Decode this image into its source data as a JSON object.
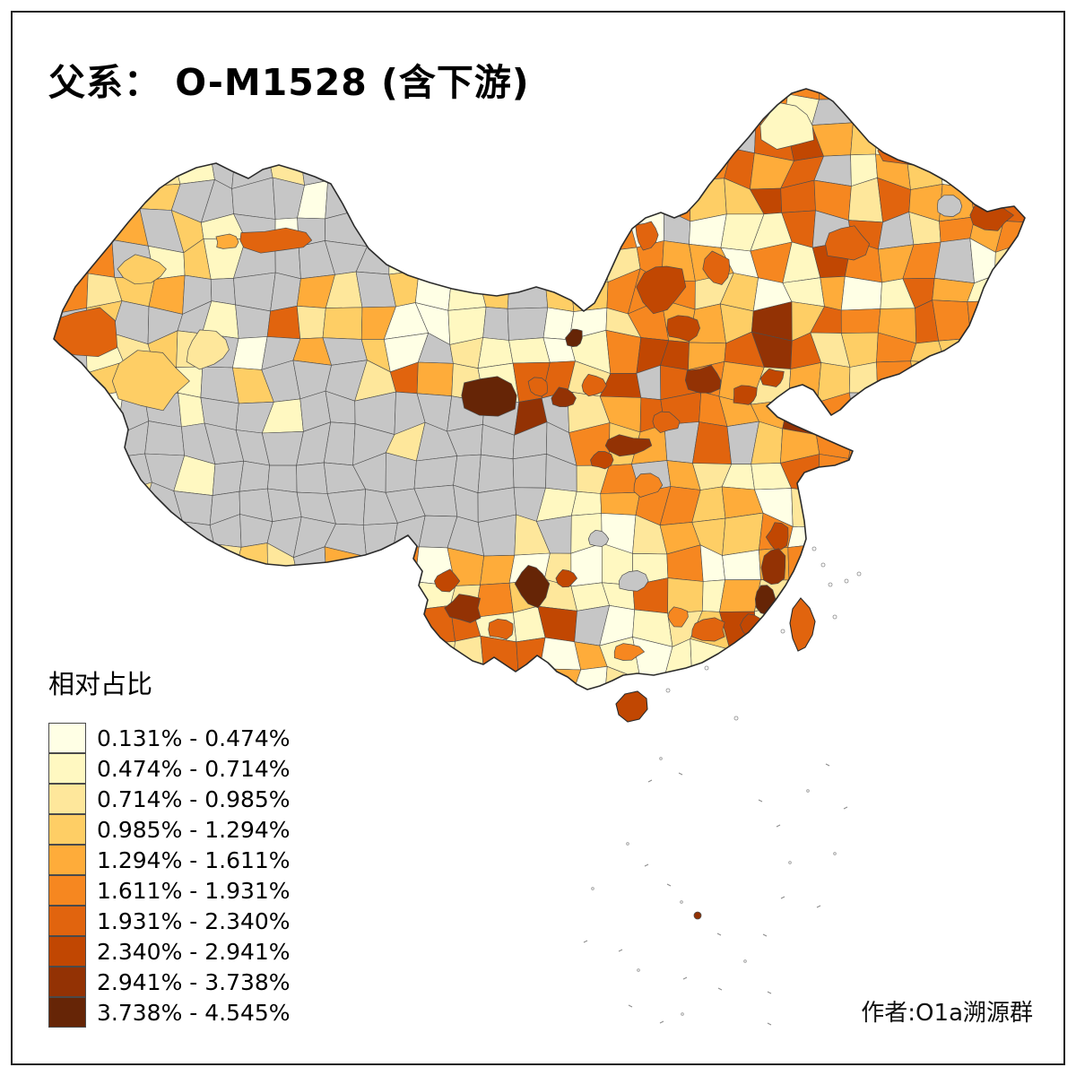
{
  "title": "父系： O-M1528 (含下游)",
  "legend": {
    "title": "相对占比",
    "labels": [
      "0.131% - 0.474%",
      "0.474% - 0.714%",
      "0.714% - 0.985%",
      "0.985% - 1.294%",
      "1.294% - 1.611%",
      "1.611% - 1.931%",
      "1.931% - 2.340%",
      "2.340% - 2.941%",
      "2.941% - 3.738%",
      "3.738% - 4.545%"
    ]
  },
  "attribution": "作者:O1a溯源群",
  "map": {
    "type": "choropleth",
    "palette": [
      "#FFFFE5",
      "#FFF8C1",
      "#FEE79B",
      "#FECE65",
      "#FEAC3A",
      "#F68720",
      "#E1640E",
      "#C14702",
      "#933204",
      "#662506"
    ],
    "no_data_color": "#C6C6C6",
    "region_border_color": "#4D4D4D",
    "outline_color": "#2B2B2B",
    "background_color": "#FFFFFF"
  }
}
